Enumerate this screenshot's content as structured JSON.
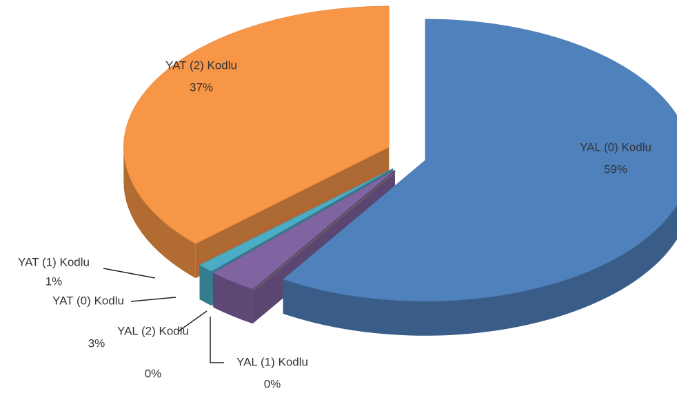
{
  "chart_data": {
    "type": "pie3d",
    "categories": [
      "YAL (0) Kodlu",
      "YAL (1) Kodlu",
      "YAL (2) Kodlu",
      "YAT (0) Kodlu",
      "YAT (1) Kodlu",
      "YAT (2) Kodlu"
    ],
    "values": [
      59,
      0,
      0,
      3,
      1,
      37
    ],
    "value_labels": [
      "59%",
      "0%",
      "0%",
      "3%",
      "1%",
      "37%"
    ],
    "colors": [
      "#4f81bd",
      "#c0504d",
      "#9bbb59",
      "#8064a2",
      "#4bacc6",
      "#f79646"
    ]
  }
}
